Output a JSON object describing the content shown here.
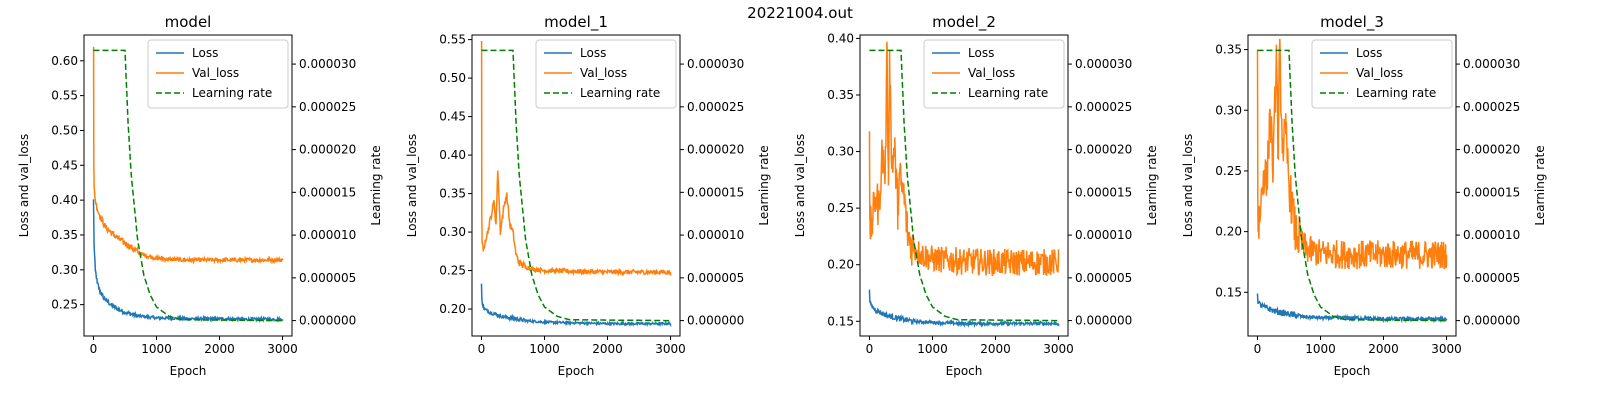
{
  "figure_title": "20221004.out",
  "colors": {
    "loss": "#1f77b4",
    "val_loss": "#ff7f0e",
    "learning_rate": "#008000"
  },
  "chart_data": [
    {
      "type": "line",
      "title": "model",
      "xlabel": "Epoch",
      "ylabel": "Loss and val_loss",
      "y2label": "Learning rate",
      "xlim": [
        -150,
        3150
      ],
      "ylim": [
        0.205,
        0.637
      ],
      "y2lim": [
        -1.8e-06,
        3.34e-05
      ],
      "xticks": [
        0,
        1000,
        2000,
        3000
      ],
      "yticks": [
        0.25,
        0.3,
        0.35,
        0.4,
        0.45,
        0.5,
        0.55,
        0.6
      ],
      "y2ticks": [
        0,
        5e-06,
        1e-05,
        1.5e-05,
        2e-05,
        2.5e-05,
        3e-05
      ],
      "legend": [
        "Loss",
        "Val_loss",
        "Learning rate"
      ],
      "legend_position": "upper right",
      "series": [
        {
          "name": "Loss",
          "style": "solid",
          "color": "#1f77b4",
          "noise": 0.002,
          "x": [
            0,
            10,
            30,
            60,
            100,
            150,
            200,
            300,
            400,
            500,
            700,
            1000,
            1500,
            2000,
            2500,
            3000
          ],
          "y": [
            0.4,
            0.335,
            0.3,
            0.282,
            0.27,
            0.262,
            0.256,
            0.248,
            0.243,
            0.239,
            0.234,
            0.231,
            0.23,
            0.23,
            0.229,
            0.229
          ]
        },
        {
          "name": "Val_loss",
          "style": "solid",
          "color": "#ff7f0e",
          "noise": 0.003,
          "x": [
            0,
            3,
            6,
            10,
            30,
            60,
            100,
            150,
            200,
            300,
            400,
            500,
            600,
            700,
            800,
            1000,
            1200,
            1500,
            2000,
            2500,
            3000
          ],
          "y": [
            0.615,
            0.62,
            0.45,
            0.42,
            0.4,
            0.388,
            0.378,
            0.368,
            0.36,
            0.352,
            0.345,
            0.338,
            0.332,
            0.326,
            0.321,
            0.317,
            0.315,
            0.314,
            0.314,
            0.314,
            0.314
          ]
        },
        {
          "name": "Learning rate",
          "style": "dashed",
          "color": "#008000",
          "axis": "y2",
          "x": [
            0,
            500,
            550,
            600,
            700,
            800,
            900,
            1000,
            1200,
            1400,
            3000
          ],
          "y": [
            3.16e-05,
            3.16e-05,
            2.3e-05,
            1.7e-05,
            9.5e-06,
            5.3e-06,
            3e-06,
            1.6e-06,
            5e-07,
            1e-07,
            0
          ]
        }
      ]
    },
    {
      "type": "line",
      "title": "model_1",
      "xlabel": "Epoch",
      "ylabel": "Loss and val_loss",
      "y2label": "Learning rate",
      "xlim": [
        -150,
        3150
      ],
      "ylim": [
        0.165,
        0.556
      ],
      "y2lim": [
        -1.8e-06,
        3.34e-05
      ],
      "xticks": [
        0,
        1000,
        2000,
        3000
      ],
      "yticks": [
        0.2,
        0.25,
        0.3,
        0.35,
        0.4,
        0.45,
        0.5,
        0.55
      ],
      "y2ticks": [
        0,
        5e-06,
        1e-05,
        1.5e-05,
        2e-05,
        2.5e-05,
        3e-05
      ],
      "legend": [
        "Loss",
        "Val_loss",
        "Learning rate"
      ],
      "legend_position": "upper right",
      "series": [
        {
          "name": "Loss",
          "style": "solid",
          "color": "#1f77b4",
          "noise": 0.0015,
          "x": [
            0,
            5,
            20,
            50,
            100,
            200,
            300,
            500,
            700,
            1000,
            1500,
            2000,
            2500,
            3000
          ],
          "y": [
            0.232,
            0.215,
            0.205,
            0.2,
            0.197,
            0.194,
            0.191,
            0.188,
            0.185,
            0.183,
            0.182,
            0.181,
            0.181,
            0.181
          ]
        },
        {
          "name": "Val_loss",
          "style": "solid",
          "color": "#ff7f0e",
          "noise": 0.003,
          "x": [
            0,
            3,
            6,
            10,
            30,
            60,
            100,
            150,
            200,
            230,
            260,
            300,
            350,
            400,
            450,
            500,
            550,
            600,
            700,
            800,
            1000,
            1500,
            2000,
            2500,
            3000
          ],
          "y": [
            0.548,
            0.545,
            0.32,
            0.285,
            0.275,
            0.29,
            0.3,
            0.32,
            0.34,
            0.31,
            0.38,
            0.3,
            0.33,
            0.35,
            0.31,
            0.3,
            0.27,
            0.26,
            0.255,
            0.252,
            0.25,
            0.249,
            0.248,
            0.248,
            0.248
          ]
        },
        {
          "name": "Learning rate",
          "style": "dashed",
          "color": "#008000",
          "axis": "y2",
          "x": [
            0,
            500,
            550,
            600,
            700,
            800,
            900,
            1000,
            1200,
            1400,
            3000
          ],
          "y": [
            3.16e-05,
            3.16e-05,
            2.3e-05,
            1.7e-05,
            9.5e-06,
            5.3e-06,
            3e-06,
            1.6e-06,
            5e-07,
            1e-07,
            0
          ]
        }
      ]
    },
    {
      "type": "line",
      "title": "model_2",
      "xlabel": "Epoch",
      "ylabel": "Loss and val_loss",
      "y2label": "Learning rate",
      "xlim": [
        -150,
        3150
      ],
      "ylim": [
        0.137,
        0.403
      ],
      "y2lim": [
        -1.8e-06,
        3.34e-05
      ],
      "xticks": [
        0,
        1000,
        2000,
        3000
      ],
      "yticks": [
        0.15,
        0.2,
        0.25,
        0.3,
        0.35,
        0.4
      ],
      "y2ticks": [
        0,
        5e-06,
        1e-05,
        1.5e-05,
        2e-05,
        2.5e-05,
        3e-05
      ],
      "legend": [
        "Loss",
        "Val_loss",
        "Learning rate"
      ],
      "legend_position": "upper right",
      "series": [
        {
          "name": "Loss",
          "style": "solid",
          "color": "#1f77b4",
          "noise": 0.0015,
          "x": [
            0,
            5,
            20,
            60,
            100,
            200,
            300,
            500,
            700,
            1000,
            1500,
            2000,
            2500,
            3000
          ],
          "y": [
            0.176,
            0.168,
            0.165,
            0.162,
            0.16,
            0.157,
            0.155,
            0.152,
            0.15,
            0.149,
            0.148,
            0.148,
            0.148,
            0.148
          ]
        },
        {
          "name": "Val_loss",
          "style": "solid",
          "color": "#ff7f0e",
          "noise": 0.012,
          "x": [
            0,
            5,
            10,
            50,
            100,
            150,
            200,
            250,
            280,
            300,
            320,
            350,
            400,
            450,
            480,
            500,
            550,
            600,
            650,
            700,
            800,
            1000,
            1500,
            2000,
            2500,
            3000
          ],
          "y": [
            0.306,
            0.24,
            0.23,
            0.24,
            0.26,
            0.25,
            0.3,
            0.28,
            0.392,
            0.27,
            0.39,
            0.29,
            0.3,
            0.25,
            0.28,
            0.27,
            0.26,
            0.23,
            0.22,
            0.215,
            0.21,
            0.205,
            0.203,
            0.202,
            0.202,
            0.202
          ]
        },
        {
          "name": "Learning rate",
          "style": "dashed",
          "color": "#008000",
          "axis": "y2",
          "x": [
            0,
            500,
            550,
            600,
            700,
            800,
            900,
            1000,
            1200,
            1400,
            3000
          ],
          "y": [
            3.16e-05,
            3.16e-05,
            2.3e-05,
            1.7e-05,
            9.5e-06,
            5.3e-06,
            3e-06,
            1.6e-06,
            5e-07,
            1e-07,
            0
          ]
        }
      ]
    },
    {
      "type": "line",
      "title": "model_3",
      "xlabel": "Epoch",
      "ylabel": "Loss and val_loss",
      "y2label": "Learning rate",
      "xlim": [
        -150,
        3150
      ],
      "ylim": [
        0.114,
        0.362
      ],
      "y2lim": [
        -1.8e-06,
        3.34e-05
      ],
      "xticks": [
        0,
        1000,
        2000,
        3000
      ],
      "yticks": [
        0.15,
        0.2,
        0.25,
        0.3,
        0.35
      ],
      "y2ticks": [
        0,
        5e-06,
        1e-05,
        1.5e-05,
        2e-05,
        2.5e-05,
        3e-05
      ],
      "legend": [
        "Loss",
        "Val_loss",
        "Learning rate"
      ],
      "legend_position": "upper right",
      "series": [
        {
          "name": "Loss",
          "style": "solid",
          "color": "#1f77b4",
          "noise": 0.0015,
          "x": [
            0,
            5,
            20,
            60,
            100,
            200,
            300,
            500,
            700,
            1000,
            1500,
            2000,
            2500,
            3000
          ],
          "y": [
            0.149,
            0.143,
            0.141,
            0.139,
            0.138,
            0.136,
            0.134,
            0.132,
            0.13,
            0.129,
            0.129,
            0.128,
            0.128,
            0.128
          ]
        },
        {
          "name": "Val_loss",
          "style": "solid",
          "color": "#ff7f0e",
          "noise": 0.012,
          "x": [
            0,
            5,
            10,
            50,
            100,
            150,
            200,
            250,
            300,
            330,
            350,
            400,
            450,
            500,
            550,
            600,
            650,
            700,
            800,
            1000,
            1500,
            2000,
            2500,
            3000
          ],
          "y": [
            0.35,
            0.23,
            0.2,
            0.22,
            0.25,
            0.24,
            0.3,
            0.25,
            0.348,
            0.26,
            0.35,
            0.27,
            0.28,
            0.24,
            0.22,
            0.2,
            0.195,
            0.19,
            0.185,
            0.182,
            0.181,
            0.181,
            0.181,
            0.181
          ]
        },
        {
          "name": "Learning rate",
          "style": "dashed",
          "color": "#008000",
          "axis": "y2",
          "x": [
            0,
            500,
            550,
            600,
            700,
            800,
            900,
            1000,
            1200,
            1400,
            3000
          ],
          "y": [
            3.16e-05,
            3.16e-05,
            2.3e-05,
            1.7e-05,
            9.5e-06,
            5.3e-06,
            3e-06,
            1.6e-06,
            5e-07,
            1e-07,
            0
          ]
        }
      ]
    }
  ]
}
